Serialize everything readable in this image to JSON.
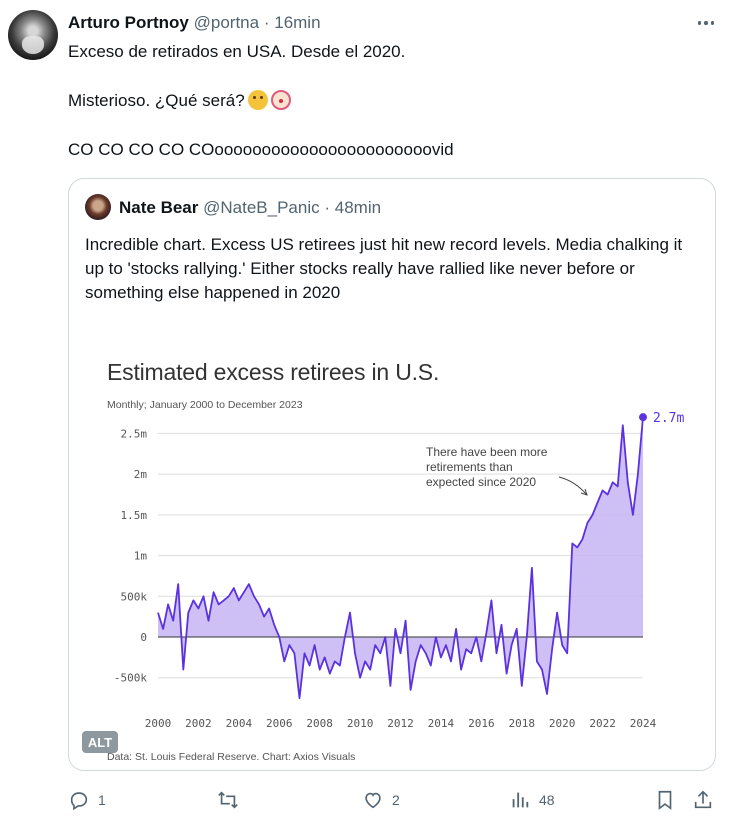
{
  "tweet": {
    "author_name": "Arturo Portnoy",
    "author_handle": "@portna",
    "separator": "·",
    "time": "16min",
    "lines": [
      "Exceso de retirados en USA. Desde el 2020.",
      "Misterioso. ¿Qué será?",
      "CO CO CO CO COooooooooooooooooooooooovid"
    ],
    "emojis": [
      "thinking-face-icon",
      "clown-face-icon"
    ]
  },
  "quote": {
    "author_name": "Nate Bear",
    "author_handle": "@NateB_Panic",
    "separator": "·",
    "time": "48min",
    "text": "Incredible chart. Excess US retirees just hit new record levels. Media chalking it up to 'stocks rallying.' Either stocks really have rallied like never before or something else happened in 2020",
    "alt_label": "ALT"
  },
  "chart_data": {
    "type": "area",
    "title": "Estimated excess retirees in U.S.",
    "subtitle": "Monthly; January 2000 to December 2023",
    "source": "Data: St. Louis Federal Reserve. Chart: Axios Visuals",
    "annotation": "There have been more retirements than expected since 2020",
    "end_label": "2.7m",
    "ylim": [
      -700000,
      2800000
    ],
    "y_ticks": [
      2500000,
      2000000,
      1500000,
      1000000,
      500000,
      0,
      -500000
    ],
    "y_tick_labels": [
      "2.5m",
      "2m",
      "1.5m",
      "1m",
      "500k",
      "0",
      "-500k"
    ],
    "x_ticks": [
      2000,
      2002,
      2004,
      2006,
      2008,
      2010,
      2012,
      2014,
      2016,
      2018,
      2020,
      2022,
      2024
    ],
    "x_tick_labels": [
      "2000",
      "2002",
      "2004",
      "2006",
      "2008",
      "2010",
      "2012",
      "2014",
      "2016",
      "2018",
      "2020",
      "2022",
      "2024"
    ],
    "series": [
      {
        "x": [
          2000.0,
          2000.25,
          2000.5,
          2000.75,
          2001.0,
          2001.25,
          2001.5,
          2001.75,
          2002.0,
          2002.25,
          2002.5,
          2002.75,
          2003.0,
          2003.25,
          2003.5,
          2003.75,
          2004.0,
          2004.25,
          2004.5,
          2004.75,
          2005.0,
          2005.25,
          2005.5,
          2005.75,
          2006.0,
          2006.25,
          2006.5,
          2006.75,
          2007.0,
          2007.25,
          2007.5,
          2007.75,
          2008.0,
          2008.25,
          2008.5,
          2008.75,
          2009.0,
          2009.25,
          2009.5,
          2009.75,
          2010.0,
          2010.25,
          2010.5,
          2010.75,
          2011.0,
          2011.25,
          2011.5,
          2011.75,
          2012.0,
          2012.25,
          2012.5,
          2012.75,
          2013.0,
          2013.25,
          2013.5,
          2013.75,
          2014.0,
          2014.25,
          2014.5,
          2014.75,
          2015.0,
          2015.25,
          2015.5,
          2015.75,
          2016.0,
          2016.25,
          2016.5,
          2016.75,
          2017.0,
          2017.25,
          2017.5,
          2017.75,
          2018.0,
          2018.25,
          2018.5,
          2018.75,
          2019.0,
          2019.25,
          2019.5,
          2019.75,
          2020.0,
          2020.25,
          2020.5,
          2020.75,
          2021.0,
          2021.25,
          2021.5,
          2021.75,
          2022.0,
          2022.25,
          2022.5,
          2022.75,
          2023.0,
          2023.25,
          2023.5,
          2023.75,
          2024.0
        ],
        "y": [
          300000,
          100000,
          400000,
          200000,
          650000,
          -400000,
          300000,
          450000,
          350000,
          500000,
          200000,
          550000,
          400000,
          450000,
          500000,
          600000,
          450000,
          550000,
          650000,
          500000,
          400000,
          250000,
          350000,
          150000,
          0,
          -300000,
          -100000,
          -200000,
          -750000,
          -200000,
          -350000,
          -100000,
          -400000,
          -250000,
          -450000,
          -300000,
          -350000,
          0,
          300000,
          -200000,
          -500000,
          -300000,
          -400000,
          -100000,
          -200000,
          0,
          -600000,
          100000,
          -200000,
          200000,
          -650000,
          -300000,
          -100000,
          -200000,
          -350000,
          0,
          -250000,
          -100000,
          -300000,
          100000,
          -400000,
          -150000,
          -200000,
          0,
          -300000,
          50000,
          450000,
          -200000,
          150000,
          -450000,
          -100000,
          100000,
          -600000,
          0,
          850000,
          -300000,
          -400000,
          -700000,
          -150000,
          300000,
          -100000,
          -200000,
          1150000,
          1100000,
          1200000,
          1400000,
          1500000,
          1650000,
          1800000,
          1750000,
          1900000,
          1850000,
          2600000,
          1900000,
          1500000,
          2000000,
          2700000
        ]
      }
    ],
    "colors": {
      "line": "#5b32e0",
      "area": "#c5b5f3",
      "zero_line": "#333333",
      "grid": "#dedede"
    }
  },
  "actions": {
    "reply_count": "1",
    "retweet_count": "",
    "like_count": "2",
    "views_count": "48",
    "icons": [
      "reply-icon",
      "retweet-icon",
      "like-icon",
      "views-icon",
      "bookmark-icon",
      "share-icon"
    ]
  }
}
